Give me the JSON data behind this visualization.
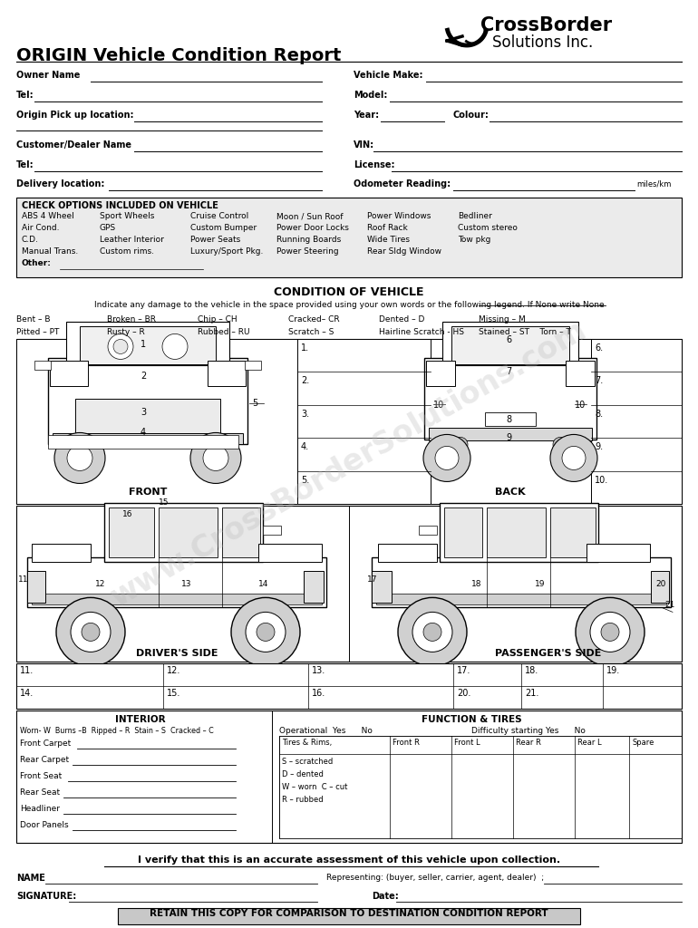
{
  "title": "ORIGIN Vehicle Condition Report",
  "bg_color": "#ffffff",
  "check_options_title": "CHECK OPTIONS INCLUDED ON VEHICLE",
  "check_options": [
    [
      "ABS 4 Wheel",
      "Sport Wheels",
      "Cruise Control",
      "Moon / Sun Roof",
      "Power Windows",
      "Bedliner"
    ],
    [
      "Air Cond.",
      "GPS",
      "Custom Bumper",
      "Power Door Locks",
      "Roof Rack",
      "Custom stereo"
    ],
    [
      "C.D.",
      "Leather Interior",
      "Power Seats",
      "Running Boards",
      "Wide Tires",
      "Tow pkg"
    ],
    [
      "Manual Trans.",
      "Custom rims.",
      "Luxury/Sport Pkg.",
      "Power Steering",
      "Rear Sldg Window",
      ""
    ],
    [
      "Other:",
      "",
      "",
      "",
      "",
      ""
    ]
  ],
  "condition_title": "CONDITION OF VEHICLE",
  "condition_subtitle": "Indicate any damage to the vehicle in the space provided using your own words or the following legend. If None write None",
  "legend_row1": [
    "Bent – B",
    "Broken – BR",
    "Chip – CH",
    "Cracked– CR",
    "Dented – D",
    "Missing – M"
  ],
  "legend_row2": [
    "Pitted – PT",
    "Rusty – R",
    "Rubbed – RU",
    "Scratch – S",
    "Hairline Scratch - HS",
    "Stained – ST    Torn – T"
  ],
  "front_label": "FRONT",
  "back_label": "BACK",
  "drivers_side_label": "DRIVER'S SIDE",
  "passengers_side_label": "PASSENGER'S SIDE",
  "numbered_lines_left": [
    "1.",
    "2.",
    "3.",
    "4.",
    "5."
  ],
  "numbered_lines_right": [
    "6.",
    "7.",
    "8.",
    "9.",
    "10."
  ],
  "interior_title": "INTERIOR",
  "interior_legend": "Worn- W  Burns –B  Ripped – R  Stain – S  Cracked – C",
  "interior_fields": [
    "Front Carpet",
    "Rear Carpet",
    "Front Seat",
    "Rear Seat",
    "Headliner",
    "Door Panels"
  ],
  "function_title": "FUNCTION & TIRES",
  "operational_label": "Operational  Yes      No",
  "difficulty_label": "Difficulty starting Yes      No",
  "tires_header": [
    "Tires & Rims,",
    "Front R",
    "Front L",
    "Rear R",
    "Rear L",
    "Spare"
  ],
  "tires_legend": [
    "S – scratched",
    "D – dented",
    "W – worn  C – cut",
    "R – rubbed"
  ],
  "verify_text": "I verify that this is an accurate assessment of this vehicle upon collection.",
  "name_label": "NAME",
  "representing_label": "Representing: (buyer, seller, carrier, agent, dealer)  ;",
  "signature_label": "SIGNATURE:",
  "date_label": "Date:",
  "footer_text": "RETAIN THIS COPY FOR COMPARISON TO DESTINATION CONDITION REPORT",
  "watermark_text": "www.CrossBorderSolutions.com"
}
